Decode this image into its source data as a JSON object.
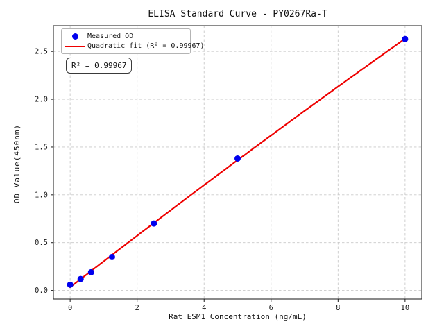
{
  "figure": {
    "title": "ELISA Standard Curve - PY0267Ra-T",
    "x_axis_label": "Rat ESM1 Concentration (ng/mL)",
    "y_axis_label": "OD Value(450nm)",
    "annotation": "R² = 0.99967",
    "legend": {
      "items": [
        {
          "label": "Measured OD",
          "marker": "dot"
        },
        {
          "label": "Quadratic fit (R² = 0.99967)",
          "marker": "line"
        }
      ]
    }
  },
  "chart_data": {
    "type": "scatter",
    "title": "ELISA Standard Curve - PY0267Ra-T",
    "xlabel": "Rat ESM1 Concentration (ng/mL)",
    "ylabel": "OD Value(450nm)",
    "x": [
      0,
      0.3125,
      0.625,
      1.25,
      2.5,
      5,
      10
    ],
    "series": [
      {
        "name": "Measured OD",
        "type": "scatter",
        "values": [
          0.06,
          0.12,
          0.19,
          0.35,
          0.7,
          1.38,
          2.63
        ],
        "color": "#0000ee",
        "marker": "circle"
      },
      {
        "name": "Quadratic fit (R² = 0.99967)",
        "type": "quadratic_fit",
        "r_squared": 0.99967,
        "color": "#ee0000",
        "x_range": [
          0,
          10
        ]
      }
    ],
    "xlim": [
      -0.5,
      10.5
    ],
    "ylim": [
      -0.09,
      2.77
    ],
    "xticks": [
      0,
      2,
      4,
      6,
      8,
      10
    ],
    "yticks": [
      0,
      0.5,
      1,
      1.5,
      2,
      2.5
    ],
    "grid": true,
    "grid_style": "dashed",
    "legend_position": "upper left",
    "colors": {
      "grid": "#c9c9c9",
      "frame": "#2b2b2b",
      "tick": "#1a1a1a",
      "background": "#ffffff"
    }
  }
}
